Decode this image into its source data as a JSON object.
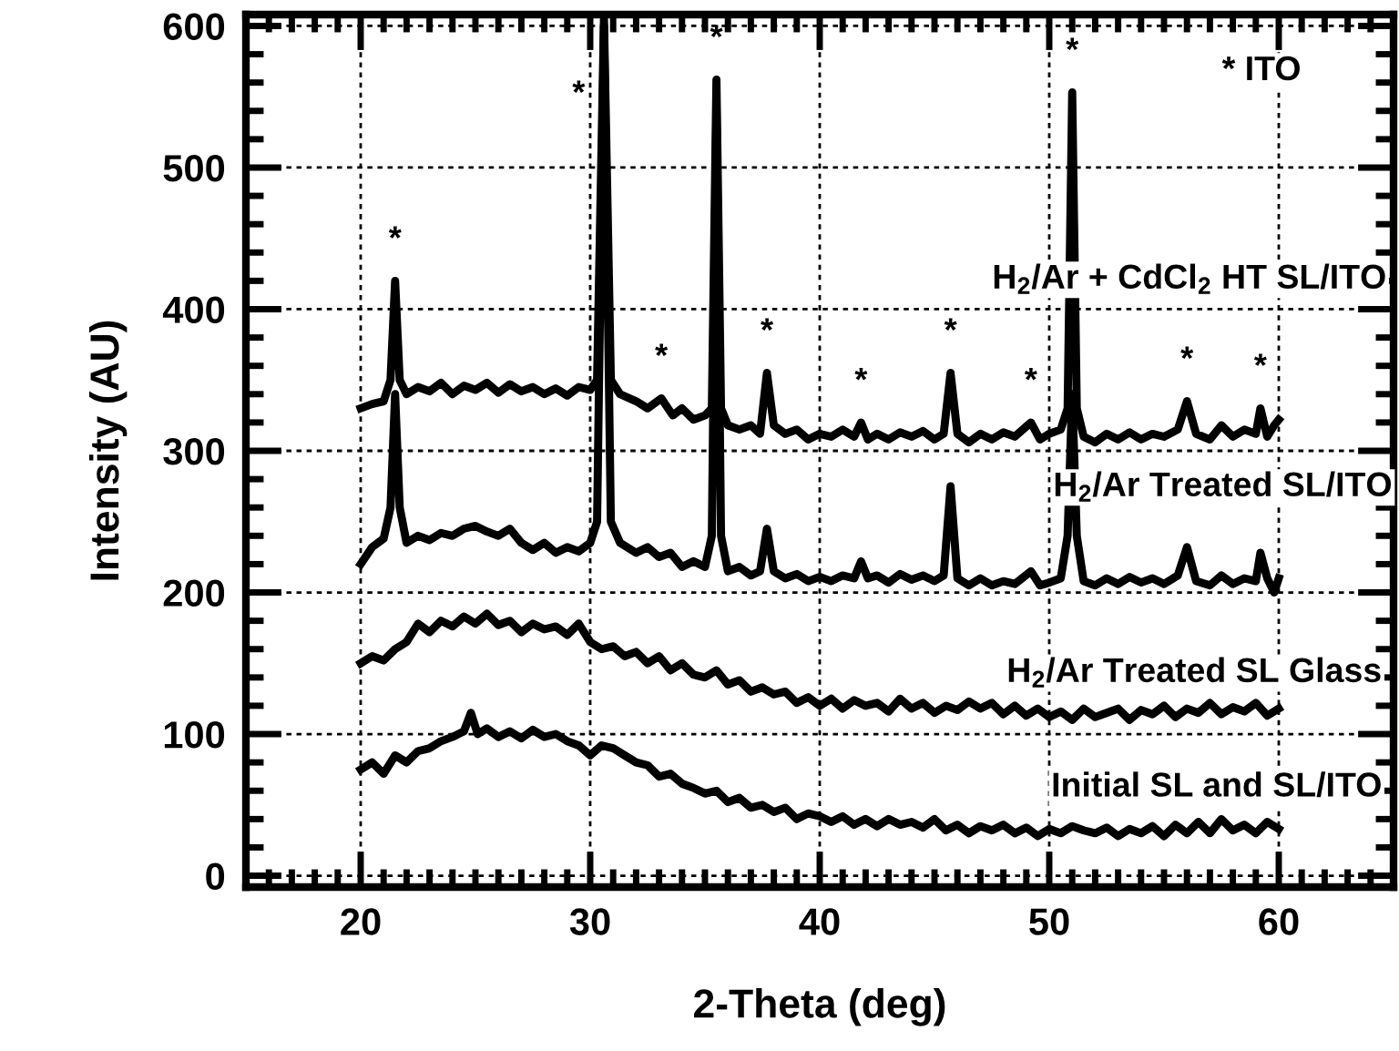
{
  "chart_data": {
    "type": "line",
    "xlabel": "2-Theta (deg)",
    "ylabel": "Intensity (AU)",
    "xlim": [
      15,
      65
    ],
    "ylim": [
      -8,
      608
    ],
    "xticks": [
      20,
      30,
      40,
      50,
      60
    ],
    "yticks": [
      0,
      100,
      200,
      300,
      400,
      500,
      600
    ],
    "grid": true,
    "marker": "none",
    "line_style": "solid",
    "series": [
      {
        "color": "#000000",
        "x": [
          20,
          20.5,
          21,
          21.3,
          21.5,
          21.7,
          22,
          22.5,
          23,
          23.5,
          24,
          24.5,
          25,
          25.5,
          26,
          26.5,
          27,
          27.5,
          28,
          28.5,
          29,
          29.5,
          30,
          30.3,
          30.6,
          30.9,
          31.3,
          32,
          32.5,
          33.1,
          33.6,
          34,
          34.5,
          35,
          35.3,
          35.5,
          35.7,
          36,
          36.5,
          37,
          37.4,
          37.7,
          38,
          38.5,
          39,
          39.5,
          40,
          40.5,
          41,
          41.5,
          41.8,
          42.1,
          42.5,
          43,
          43.5,
          44,
          44.5,
          45,
          45.4,
          45.7,
          46,
          46.5,
          47,
          47.5,
          48,
          48.5,
          49.2,
          49.6,
          50,
          50.5,
          50.8,
          51,
          51.2,
          51.5,
          52,
          52.5,
          53,
          53.5,
          54,
          54.5,
          55,
          55.6,
          56,
          56.4,
          57,
          57.5,
          58,
          58.5,
          59,
          59.2,
          59.5,
          59.8,
          60
        ],
        "values": [
          330,
          333,
          335,
          350,
          420,
          350,
          340,
          345,
          342,
          348,
          340,
          346,
          343,
          348,
          341,
          347,
          342,
          345,
          340,
          344,
          339,
          345,
          343,
          350,
          605,
          350,
          340,
          335,
          330,
          337,
          325,
          330,
          322,
          325,
          330,
          562,
          330,
          318,
          315,
          318,
          312,
          355,
          318,
          312,
          315,
          308,
          312,
          310,
          315,
          310,
          320,
          308,
          312,
          308,
          313,
          310,
          314,
          308,
          312,
          355,
          312,
          306,
          312,
          308,
          313,
          310,
          320,
          308,
          312,
          315,
          330,
          553,
          330,
          310,
          306,
          312,
          308,
          313,
          308,
          312,
          310,
          315,
          335,
          312,
          308,
          318,
          310,
          315,
          312,
          330,
          310,
          318,
          322
        ]
      },
      {
        "color": "#000000",
        "x": [
          20,
          20.5,
          21,
          21.3,
          21.5,
          21.7,
          22,
          22.5,
          23,
          23.5,
          24,
          24.5,
          25,
          25.5,
          26,
          26.5,
          27,
          27.5,
          28,
          28.5,
          29,
          29.5,
          30,
          30.3,
          30.6,
          30.9,
          31.3,
          32,
          32.5,
          33,
          33.5,
          34,
          34.5,
          35,
          35.3,
          35.5,
          35.7,
          36,
          36.5,
          37,
          37.4,
          37.7,
          38,
          38.5,
          39,
          39.5,
          40,
          40.5,
          41,
          41.5,
          41.8,
          42.1,
          42.5,
          43,
          43.5,
          44,
          44.5,
          45,
          45.4,
          45.7,
          46,
          46.5,
          47,
          47.5,
          48,
          48.5,
          49.2,
          49.6,
          50,
          50.5,
          50.8,
          51,
          51.2,
          51.5,
          52,
          52.5,
          53,
          53.5,
          54,
          54.5,
          55,
          55.6,
          56,
          56.4,
          57,
          57.5,
          58,
          58.5,
          59,
          59.2,
          59.5,
          59.8,
          60
        ],
        "values": [
          220,
          232,
          238,
          260,
          340,
          260,
          235,
          240,
          237,
          242,
          240,
          245,
          247,
          243,
          240,
          245,
          235,
          230,
          235,
          228,
          232,
          229,
          235,
          250,
          600,
          250,
          235,
          228,
          232,
          225,
          228,
          218,
          222,
          218,
          240,
          540,
          240,
          215,
          218,
          212,
          215,
          245,
          215,
          210,
          213,
          208,
          211,
          208,
          212,
          210,
          222,
          210,
          212,
          207,
          213,
          209,
          212,
          208,
          212,
          275,
          210,
          205,
          210,
          205,
          208,
          206,
          215,
          205,
          207,
          210,
          240,
          340,
          240,
          208,
          205,
          210,
          206,
          211,
          207,
          210,
          206,
          212,
          232,
          208,
          205,
          212,
          206,
          210,
          208,
          228,
          210,
          200,
          210
        ]
      },
      {
        "color": "#000000",
        "x": [
          20,
          20.5,
          21,
          21.5,
          22,
          22.5,
          23,
          23.5,
          24,
          24.5,
          25,
          25.5,
          26,
          26.5,
          27,
          27.5,
          28,
          28.5,
          29,
          29.5,
          30,
          30.5,
          31,
          31.5,
          32,
          32.5,
          33,
          33.5,
          34,
          34.5,
          35,
          35.5,
          36,
          36.5,
          37,
          37.5,
          38,
          38.5,
          39,
          39.5,
          40,
          40.5,
          41,
          41.5,
          42,
          42.5,
          43,
          43.5,
          44,
          44.5,
          45,
          45.5,
          46,
          46.5,
          47,
          47.5,
          48,
          48.5,
          49,
          49.5,
          50,
          50.5,
          51,
          51.5,
          52,
          52.5,
          53,
          53.5,
          54,
          54.5,
          55,
          55.5,
          56,
          56.5,
          57,
          57.5,
          58,
          58.5,
          59,
          59.5,
          60
        ],
        "values": [
          150,
          155,
          152,
          160,
          165,
          178,
          172,
          180,
          176,
          183,
          178,
          185,
          177,
          180,
          172,
          178,
          174,
          176,
          170,
          178,
          165,
          160,
          162,
          155,
          158,
          150,
          155,
          145,
          150,
          142,
          140,
          145,
          135,
          138,
          130,
          133,
          128,
          130,
          122,
          126,
          120,
          125,
          118,
          124,
          120,
          122,
          116,
          125,
          118,
          122,
          115,
          120,
          117,
          123,
          118,
          122,
          114,
          120,
          113,
          118,
          112,
          116,
          110,
          118,
          112,
          115,
          118,
          110,
          117,
          114,
          120,
          112,
          118,
          115,
          122,
          114,
          119,
          116,
          122,
          113,
          118
        ]
      },
      {
        "color": "#000000",
        "x": [
          20,
          20.5,
          21,
          21.5,
          22,
          22.5,
          23,
          23.5,
          24,
          24.5,
          24.8,
          25.1,
          25.5,
          26,
          26.5,
          27,
          27.5,
          28,
          28.5,
          29,
          29.5,
          30,
          30.5,
          31,
          31.5,
          32,
          32.5,
          33,
          33.5,
          34,
          34.5,
          35,
          35.5,
          36,
          36.5,
          37,
          37.5,
          38,
          38.5,
          39,
          39.5,
          40,
          40.5,
          41,
          41.5,
          42,
          42.5,
          43,
          43.5,
          44,
          44.5,
          45,
          45.5,
          46,
          46.5,
          47,
          47.5,
          48,
          48.5,
          49,
          49.5,
          50,
          50.5,
          51,
          51.5,
          52,
          52.5,
          53,
          53.5,
          54,
          54.5,
          55,
          55.5,
          56,
          56.5,
          57,
          57.5,
          58,
          58.5,
          59,
          59.5,
          60
        ],
        "values": [
          75,
          80,
          72,
          85,
          80,
          88,
          90,
          95,
          98,
          102,
          115,
          100,
          104,
          98,
          102,
          97,
          103,
          98,
          100,
          95,
          92,
          85,
          92,
          90,
          85,
          80,
          78,
          70,
          72,
          65,
          62,
          58,
          60,
          52,
          55,
          48,
          50,
          45,
          48,
          40,
          44,
          42,
          38,
          42,
          36,
          40,
          35,
          40,
          36,
          38,
          34,
          40,
          32,
          36,
          30,
          35,
          32,
          36,
          30,
          34,
          28,
          33,
          30,
          35,
          32,
          30,
          34,
          28,
          33,
          30,
          35,
          28,
          36,
          30,
          38,
          30,
          40,
          32,
          36,
          30,
          38,
          33
        ]
      }
    ],
    "annotations": [
      {
        "text": "*",
        "x": 21.5,
        "y": 420
      },
      {
        "text": "*",
        "x": 30.6,
        "y": 605
      },
      {
        "text": "*",
        "x": 35.5,
        "y": 562
      },
      {
        "text": "*",
        "x": 33.1,
        "y": 337
      },
      {
        "text": "*",
        "x": 37.7,
        "y": 355
      },
      {
        "text": "*",
        "x": 41.8,
        "y": 320
      },
      {
        "text": "*",
        "x": 45.7,
        "y": 355
      },
      {
        "text": "*",
        "x": 49.2,
        "y": 320
      },
      {
        "text": "*",
        "x": 51,
        "y": 553
      },
      {
        "text": "*",
        "x": 56,
        "y": 335
      },
      {
        "text": "*",
        "x": 59.2,
        "y": 330
      },
      "H$_{2}$/Ar + CdCl$_{2}$ HT SL/ITO",
      "H$_{2}$/Ar Treated SL/ITO",
      "H$_{2}$/Ar Treated SL Glass",
      "Initial SL and SL/ITO",
      "* ITO"
    ]
  }
}
